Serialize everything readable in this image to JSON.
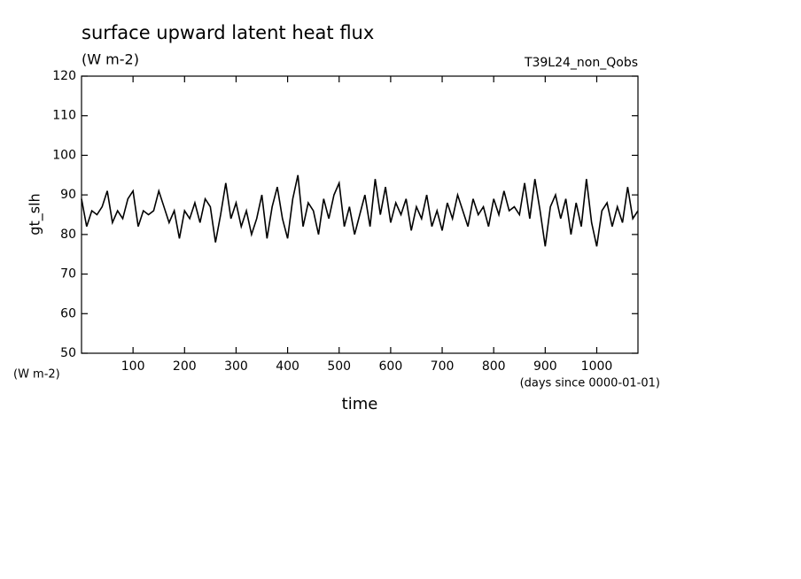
{
  "chart_data": {
    "type": "line",
    "title": "surface upward latent heat flux",
    "subtitle": "(W m-2)",
    "annotation": "T39L24_non_Qobs",
    "y_label": "gt_slh",
    "y_unit": "(W m-2)",
    "x_label": "time",
    "x_unit": "(days since 0000-01-01)",
    "xlim": [
      0,
      1080
    ],
    "ylim": [
      50,
      120
    ],
    "xticks": [
      100,
      200,
      300,
      400,
      500,
      600,
      700,
      800,
      900,
      1000
    ],
    "yticks": [
      50,
      60,
      70,
      80,
      90,
      100,
      110,
      120
    ],
    "x": [
      0,
      10,
      20,
      30,
      40,
      50,
      60,
      70,
      80,
      90,
      100,
      110,
      120,
      130,
      140,
      150,
      160,
      170,
      180,
      190,
      200,
      210,
      220,
      230,
      240,
      250,
      260,
      270,
      280,
      290,
      300,
      310,
      320,
      330,
      340,
      350,
      360,
      370,
      380,
      390,
      400,
      410,
      420,
      430,
      440,
      450,
      460,
      470,
      480,
      490,
      500,
      510,
      520,
      530,
      540,
      550,
      560,
      570,
      580,
      590,
      600,
      610,
      620,
      630,
      640,
      650,
      660,
      670,
      680,
      690,
      700,
      710,
      720,
      730,
      740,
      750,
      760,
      770,
      780,
      790,
      800,
      810,
      820,
      830,
      840,
      850,
      860,
      870,
      880,
      890,
      900,
      910,
      920,
      930,
      940,
      950,
      960,
      970,
      980,
      990,
      1000,
      1010,
      1020,
      1030,
      1040,
      1050,
      1060,
      1070,
      1080
    ],
    "series": [
      {
        "color": "#000000",
        "values": [
          89,
          82,
          86,
          85,
          87,
          91,
          83,
          86,
          84,
          89,
          91,
          82,
          86,
          85,
          86,
          91,
          87,
          83,
          86,
          79,
          86,
          84,
          88,
          83,
          89,
          87,
          78,
          85,
          93,
          84,
          88,
          82,
          86,
          80,
          84,
          90,
          79,
          87,
          92,
          84,
          79,
          89,
          95,
          82,
          88,
          86,
          80,
          89,
          84,
          90,
          93,
          82,
          87,
          80,
          85,
          90,
          82,
          94,
          85,
          92,
          83,
          88,
          85,
          89,
          81,
          87,
          84,
          90,
          82,
          86,
          81,
          88,
          84,
          90,
          86,
          82,
          89,
          85,
          87,
          82,
          89,
          85,
          91,
          86,
          87,
          85,
          93,
          84,
          94,
          86,
          77,
          87,
          90,
          84,
          89,
          80,
          88,
          82,
          94,
          83,
          77,
          86,
          88,
          82,
          87,
          83,
          92,
          84,
          86
        ]
      }
    ]
  }
}
